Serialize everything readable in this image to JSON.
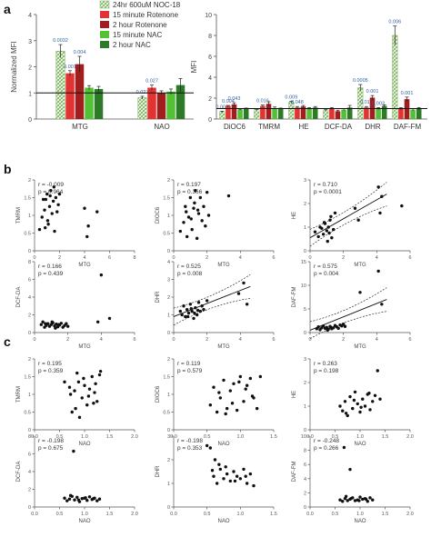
{
  "panel_labels": [
    "a",
    "b",
    "c"
  ],
  "legend": {
    "entries": [
      "24hr 600uM NOC-18",
      "15 minute Rotenone",
      "2 hour Rotenone",
      "15 minute NAC",
      "2 hour NAC"
    ],
    "colors": [
      "#b9d8a6",
      "#e23333",
      "#a21d1d",
      "#52c234",
      "#2d7a28"
    ],
    "first_pattern": "crosshatch"
  },
  "chart_data": [
    {
      "type": "bar",
      "panel": "a-left",
      "ylabel": "Normalized MFI",
      "categories": [
        "MTG",
        "NAO"
      ],
      "series_names": [
        "24hr 600uM NOC-18",
        "15 minute Rotenone",
        "2 hour Rotenone",
        "15 minute NAC",
        "2 hour NAC"
      ],
      "values": [
        [
          2.6,
          1.75,
          2.1,
          1.2,
          1.15
        ],
        [
          0.82,
          1.2,
          1.0,
          1.05,
          1.3
        ]
      ],
      "errors": [
        [
          0.25,
          0.1,
          0.3,
          0.08,
          0.1
        ],
        [
          0.05,
          0.1,
          0.08,
          0.1,
          0.25
        ]
      ],
      "annotations": [
        [
          "0.0032",
          "0.001",
          "0.004",
          "",
          ""
        ],
        [
          "0.027",
          "0.027",
          "",
          "",
          ""
        ]
      ],
      "ylim": [
        0,
        4
      ],
      "yticks": [
        0,
        1,
        2,
        3,
        4
      ],
      "reference_line": 1
    },
    {
      "type": "bar",
      "panel": "a-right",
      "ylabel": "MFI",
      "categories": [
        "DiOC6",
        "TMRM",
        "HE",
        "DCF-DA",
        "DHR",
        "DAF-FM"
      ],
      "values": [
        [
          0.7,
          1.25,
          1.4,
          0.9,
          1.0
        ],
        [
          0.9,
          1.25,
          1.45,
          1.05,
          1.0
        ],
        [
          1.6,
          1.1,
          1.2,
          1.0,
          1.1
        ],
        [
          0.85,
          1.0,
          0.75,
          0.9,
          1.1
        ],
        [
          3.0,
          1.1,
          2.05,
          1.0,
          1.25
        ],
        [
          8.0,
          1.0,
          1.9,
          0.9,
          1.0
        ]
      ],
      "errors": [
        [
          0.05,
          0.05,
          0.15,
          0.05,
          0.05
        ],
        [
          0.05,
          0.1,
          0.2,
          0.1,
          0.05
        ],
        [
          0.1,
          0.1,
          0.1,
          0.1,
          0.1
        ],
        [
          0.05,
          0.1,
          0.1,
          0.1,
          0.2
        ],
        [
          0.3,
          0.1,
          0.2,
          0.1,
          0.1
        ],
        [
          0.9,
          0.1,
          0.2,
          0.1,
          0.1
        ]
      ],
      "annotations": [
        [
          "0.001",
          "0.004",
          "0.043",
          "",
          ""
        ],
        [
          "",
          "0.016",
          "",
          "",
          ""
        ],
        [
          "0.009",
          "0.048",
          "",
          "",
          ""
        ],
        [
          "",
          "",
          "",
          "",
          ""
        ],
        [
          "0.0005",
          "0.013",
          "0.001",
          "0.003",
          ""
        ],
        [
          "0.006",
          "",
          "0.001",
          "",
          ""
        ]
      ],
      "ylim": [
        0,
        10
      ],
      "yticks": [
        0,
        2,
        4,
        6,
        8,
        10
      ],
      "reference_line": 1
    },
    {
      "type": "scatter",
      "panel": "b",
      "subpanel": 1,
      "xlabel": "MTG",
      "ylabel": "TMRM",
      "xlim": [
        0,
        8
      ],
      "xticks": [
        0,
        2,
        4,
        6,
        8
      ],
      "ylim": [
        0,
        2
      ],
      "yticks": [
        0,
        0.5,
        1,
        1.5,
        2
      ],
      "stats": [
        "r = -0.009",
        "p = 0.964"
      ],
      "fit": false,
      "x": [
        0.4,
        0.6,
        0.8,
        0.9,
        1.0,
        1.1,
        1.2,
        1.3,
        1.4,
        1.5,
        1.6,
        1.7,
        1.8,
        1.9,
        2.0,
        0.7,
        1.05,
        1.25,
        1.55,
        0.85,
        4.0,
        4.2,
        4.3,
        5.0
      ],
      "y": [
        0.6,
        0.95,
        1.15,
        1.45,
        1.6,
        0.75,
        1.25,
        1.7,
        1.05,
        1.4,
        0.55,
        1.5,
        1.1,
        1.3,
        1.6,
        1.45,
        0.85,
        1.55,
        1.8,
        0.65,
        1.2,
        0.4,
        0.7,
        1.1
      ]
    },
    {
      "type": "scatter",
      "panel": "b",
      "subpanel": 2,
      "xlabel": "MTG",
      "ylabel": "DIOC6",
      "xlim": [
        0,
        6
      ],
      "xticks": [
        0,
        2,
        4,
        6
      ],
      "ylim": [
        0,
        2
      ],
      "yticks": [
        0,
        0.5,
        1,
        1.5,
        2
      ],
      "stats": [
        "r = 0.197",
        "p = 0.366"
      ],
      "fit": false,
      "x": [
        0.4,
        0.6,
        0.7,
        0.8,
        0.9,
        1.0,
        1.1,
        1.2,
        1.3,
        1.4,
        1.5,
        1.6,
        1.7,
        1.8,
        1.9,
        2.0,
        0.75,
        1.05,
        1.25,
        1.45,
        2.1,
        3.3
      ],
      "y": [
        0.55,
        0.8,
        1.25,
        0.4,
        0.95,
        1.5,
        0.6,
        1.2,
        1.7,
        0.35,
        1.05,
        1.5,
        0.85,
        1.25,
        0.7,
        1.65,
        1.1,
        0.9,
        1.35,
        1.15,
        1.0,
        1.55
      ]
    },
    {
      "type": "scatter",
      "panel": "b",
      "subpanel": 3,
      "xlabel": "MTG",
      "ylabel": "HE",
      "xlim": [
        0,
        6
      ],
      "xticks": [
        0,
        2,
        4,
        6
      ],
      "ylim": [
        0,
        3
      ],
      "yticks": [
        0,
        1,
        2,
        3
      ],
      "stats": [
        "r = 0.710",
        "p = 0.0001"
      ],
      "fit": true,
      "fit_line": [
        [
          0,
          0.55
        ],
        [
          4.6,
          2.4
        ]
      ],
      "x": [
        0.3,
        0.5,
        0.6,
        0.7,
        0.8,
        0.9,
        1.0,
        1.1,
        1.2,
        1.3,
        1.4,
        1.5,
        0.85,
        1.05,
        1.15,
        1.25,
        2.7,
        2.9,
        4.1,
        4.3,
        4.2,
        5.5
      ],
      "y": [
        0.8,
        0.6,
        1.0,
        0.95,
        0.7,
        1.15,
        0.85,
        1.0,
        1.3,
        0.55,
        0.9,
        1.6,
        1.2,
        0.4,
        0.75,
        1.45,
        1.8,
        1.3,
        2.7,
        2.3,
        1.6,
        1.9
      ]
    },
    {
      "type": "scatter",
      "panel": "b",
      "subpanel": 4,
      "xlabel": "MTG",
      "ylabel": "DCF-DA",
      "xlim": [
        0,
        6
      ],
      "xticks": [
        0,
        2,
        4,
        6
      ],
      "ylim": [
        0,
        8
      ],
      "yticks": [
        0,
        2,
        4,
        6,
        8
      ],
      "stats": [
        "r = 0.166",
        "p = 0.439"
      ],
      "fit": false,
      "x": [
        0.4,
        0.5,
        0.6,
        0.7,
        0.8,
        0.9,
        1.0,
        1.1,
        1.2,
        1.3,
        1.4,
        1.5,
        1.6,
        1.7,
        1.8,
        1.9,
        2.0,
        0.65,
        1.05,
        1.25,
        1.45,
        3.8,
        4.0,
        4.5
      ],
      "y": [
        0.9,
        1.2,
        0.6,
        0.8,
        1.0,
        0.7,
        0.9,
        1.1,
        0.75,
        0.95,
        0.65,
        0.85,
        1.05,
        0.6,
        0.8,
        1.0,
        0.7,
        1.0,
        1.2,
        0.5,
        0.9,
        1.2,
        6.5,
        1.6
      ]
    },
    {
      "type": "scatter",
      "panel": "b",
      "subpanel": 5,
      "xlabel": "MTG",
      "ylabel": "DHR",
      "xlim": [
        0,
        6
      ],
      "xticks": [
        0,
        2,
        4,
        6
      ],
      "ylim": [
        0,
        4
      ],
      "yticks": [
        0,
        1,
        2,
        3,
        4
      ],
      "stats": [
        "r = 0.525",
        "p = 0.008"
      ],
      "fit": true,
      "fit_line": [
        [
          0,
          0.9
        ],
        [
          4.6,
          2.6
        ]
      ],
      "x": [
        0.4,
        0.5,
        0.6,
        0.7,
        0.8,
        0.9,
        1.0,
        1.1,
        1.2,
        1.3,
        1.4,
        1.5,
        1.6,
        1.7,
        1.8,
        0.85,
        1.05,
        1.25,
        1.45,
        2.0,
        3.9,
        4.2,
        4.4
      ],
      "y": [
        1.2,
        1.0,
        1.5,
        0.9,
        1.3,
        1.1,
        1.6,
        1.2,
        0.8,
        1.4,
        1.0,
        1.7,
        1.2,
        1.5,
        1.3,
        0.9,
        1.35,
        1.1,
        1.25,
        1.8,
        2.2,
        2.8,
        1.6
      ]
    },
    {
      "type": "scatter",
      "panel": "b",
      "subpanel": 6,
      "xlabel": "MTG",
      "ylabel": "DAF-FM",
      "xlim": [
        0,
        6
      ],
      "xticks": [
        0,
        2,
        4,
        6
      ],
      "ylim": [
        0,
        15
      ],
      "yticks": [
        0,
        5,
        10,
        15
      ],
      "stats": [
        "r = 0.575",
        "p = 0.004"
      ],
      "fit": true,
      "fit_line": [
        [
          0,
          0.5
        ],
        [
          4.6,
          7.0
        ]
      ],
      "x": [
        0.4,
        0.5,
        0.6,
        0.7,
        0.8,
        0.9,
        1.0,
        1.1,
        1.2,
        1.3,
        1.4,
        1.5,
        1.6,
        1.7,
        1.8,
        1.9,
        2.0,
        2.1,
        1.05,
        1.25,
        3.0,
        4.1,
        4.3
      ],
      "y": [
        0.8,
        1.2,
        0.6,
        1.0,
        1.4,
        0.9,
        1.1,
        0.7,
        1.3,
        0.8,
        1.0,
        1.5,
        1.2,
        0.9,
        1.6,
        1.4,
        1.8,
        1.3,
        0.5,
        1.1,
        8.5,
        13.0,
        6.0
      ]
    },
    {
      "type": "scatter",
      "panel": "c",
      "subpanel": 1,
      "xlabel": "NAO",
      "ylabel": "TMRM",
      "xlim": [
        0,
        2
      ],
      "xticks": [
        0,
        0.5,
        1,
        1.5,
        2
      ],
      "xtick_labels": [
        "0.0",
        "0.5",
        "1.0",
        "1.5",
        "2.0"
      ],
      "ylim": [
        0,
        2
      ],
      "yticks": [
        0,
        0.5,
        1,
        1.5,
        2
      ],
      "stats": [
        "r = 0.195",
        "p = 0.359"
      ],
      "fit": false,
      "x": [
        0.6,
        0.7,
        0.75,
        0.8,
        0.85,
        0.9,
        0.95,
        1.0,
        1.05,
        1.1,
        1.15,
        1.2,
        1.25,
        1.3,
        0.82,
        0.88,
        0.98,
        1.08,
        1.22,
        1.32,
        0.72,
        1.18
      ],
      "y": [
        1.35,
        1.2,
        0.5,
        1.1,
        1.6,
        0.35,
        0.9,
        1.25,
        0.7,
        1.15,
        1.5,
        1.05,
        0.8,
        1.55,
        0.6,
        1.35,
        1.45,
        0.95,
        1.3,
        1.65,
        1.0,
        0.75
      ]
    },
    {
      "type": "scatter",
      "panel": "c",
      "subpanel": 2,
      "xlabel": "NAO",
      "ylabel": "DIOC6",
      "xlim": [
        0,
        1.5
      ],
      "xticks": [
        0,
        0.5,
        1,
        1.5
      ],
      "xtick_labels": [
        "0.0",
        "0.5",
        "1.0",
        "1.5"
      ],
      "ylim": [
        0,
        2
      ],
      "yticks": [
        0,
        0.5,
        1,
        1.5,
        2
      ],
      "stats": [
        "r = 0.119",
        "p = 0.579"
      ],
      "fit": false,
      "x": [
        0.55,
        0.6,
        0.65,
        0.7,
        0.75,
        0.8,
        0.85,
        0.9,
        0.95,
        1.0,
        1.05,
        1.1,
        1.15,
        1.2,
        1.25,
        0.68,
        0.78,
        0.88,
        0.98,
        1.08,
        1.18,
        1.3
      ],
      "y": [
        0.7,
        1.2,
        0.5,
        0.9,
        1.4,
        0.6,
        1.1,
        1.3,
        0.55,
        1.5,
        0.8,
        1.25,
        1.45,
        0.9,
        0.6,
        1.05,
        0.45,
        0.75,
        1.35,
        1.15,
        0.95,
        1.5
      ]
    },
    {
      "type": "scatter",
      "panel": "c",
      "subpanel": 3,
      "xlabel": "NAO",
      "ylabel": "HE",
      "xlim": [
        0,
        2
      ],
      "xticks": [
        0,
        0.5,
        1,
        1.5,
        2
      ],
      "xtick_labels": [
        "0.0",
        "0.5",
        "1.0",
        "1.5",
        "2.0"
      ],
      "ylim": [
        0,
        3
      ],
      "yticks": [
        0,
        1,
        2,
        3
      ],
      "stats": [
        "r = 0.263",
        "p = 0.198"
      ],
      "fit": false,
      "x": [
        0.6,
        0.65,
        0.7,
        0.75,
        0.8,
        0.85,
        0.9,
        0.95,
        1.0,
        1.05,
        1.1,
        1.15,
        1.2,
        1.25,
        1.3,
        0.72,
        0.88,
        1.02,
        1.18,
        1.35,
        1.4
      ],
      "y": [
        1.0,
        0.8,
        1.2,
        0.6,
        1.4,
        0.9,
        1.6,
        1.1,
        0.75,
        1.3,
        1.0,
        1.5,
        0.85,
        1.2,
        1.45,
        0.7,
        1.25,
        0.95,
        1.55,
        2.5,
        1.3
      ]
    },
    {
      "type": "scatter",
      "panel": "c",
      "subpanel": 4,
      "xlabel": "NAO",
      "ylabel": "DCF-DA",
      "xlim": [
        0,
        2
      ],
      "xticks": [
        0,
        0.5,
        1,
        1.5,
        2
      ],
      "xtick_labels": [
        "0.0",
        "0.5",
        "1.0",
        "1.5",
        "2.0"
      ],
      "ylim": [
        0,
        8
      ],
      "yticks": [
        0,
        2,
        4,
        6,
        8
      ],
      "stats": [
        "r = -0.198",
        "p = 0.675"
      ],
      "fit": false,
      "x": [
        0.6,
        0.65,
        0.7,
        0.75,
        0.8,
        0.85,
        0.9,
        0.95,
        1.0,
        1.05,
        1.1,
        1.15,
        1.2,
        1.25,
        1.3,
        0.72,
        0.88,
        1.02,
        1.18,
        0.78
      ],
      "y": [
        1.0,
        0.7,
        0.9,
        1.2,
        0.8,
        1.1,
        0.6,
        0.95,
        1.0,
        0.75,
        1.15,
        0.85,
        1.0,
        0.7,
        0.9,
        1.3,
        0.8,
        1.05,
        0.95,
        6.3
      ]
    },
    {
      "type": "scatter",
      "panel": "c",
      "subpanel": 5,
      "xlabel": "NAO",
      "ylabel": "DHR",
      "xlim": [
        0,
        1.5
      ],
      "xticks": [
        0,
        0.5,
        1,
        1.5
      ],
      "xtick_labels": [
        "0.0",
        "0.5",
        "1.0",
        "1.5"
      ],
      "ylim": [
        0,
        3
      ],
      "yticks": [
        0,
        1,
        2,
        3
      ],
      "stats": [
        "r = -0.198",
        "p = 0.353"
      ],
      "fit": false,
      "x": [
        0.5,
        0.55,
        0.6,
        0.65,
        0.7,
        0.75,
        0.8,
        0.85,
        0.9,
        0.95,
        1.0,
        1.05,
        1.1,
        1.15,
        1.2,
        0.62,
        0.78,
        0.92,
        1.08,
        0.58,
        0.68
      ],
      "y": [
        2.6,
        2.5,
        1.3,
        1.0,
        1.6,
        1.2,
        1.4,
        1.1,
        1.5,
        1.3,
        1.2,
        1.6,
        1.0,
        1.4,
        0.9,
        2.0,
        1.7,
        1.1,
        1.3,
        1.55,
        1.8
      ]
    },
    {
      "type": "scatter",
      "panel": "c",
      "subpanel": 6,
      "xlabel": "NAO",
      "ylabel": "DAF-FM",
      "xlim": [
        0,
        2
      ],
      "xticks": [
        0,
        0.5,
        1,
        1.5,
        2
      ],
      "xtick_labels": [
        "0.0",
        "0.5",
        "1.0",
        "1.5",
        "2.0"
      ],
      "ylim": [
        0,
        10
      ],
      "yticks": [
        0,
        2,
        4,
        6,
        8,
        10
      ],
      "stats": [
        "r = -0.248",
        "p = 0.266"
      ],
      "fit": false,
      "x": [
        0.6,
        0.65,
        0.7,
        0.75,
        0.8,
        0.85,
        0.9,
        0.95,
        1.0,
        1.05,
        1.1,
        1.15,
        1.2,
        1.25,
        0.72,
        0.82,
        0.98,
        1.12,
        0.68,
        0.8
      ],
      "y": [
        1.0,
        0.8,
        1.2,
        0.9,
        1.1,
        1.3,
        0.9,
        1.0,
        1.4,
        1.1,
        1.2,
        0.8,
        1.3,
        1.0,
        1.5,
        1.2,
        0.9,
        1.1,
        8.4,
        5.3
      ]
    }
  ]
}
